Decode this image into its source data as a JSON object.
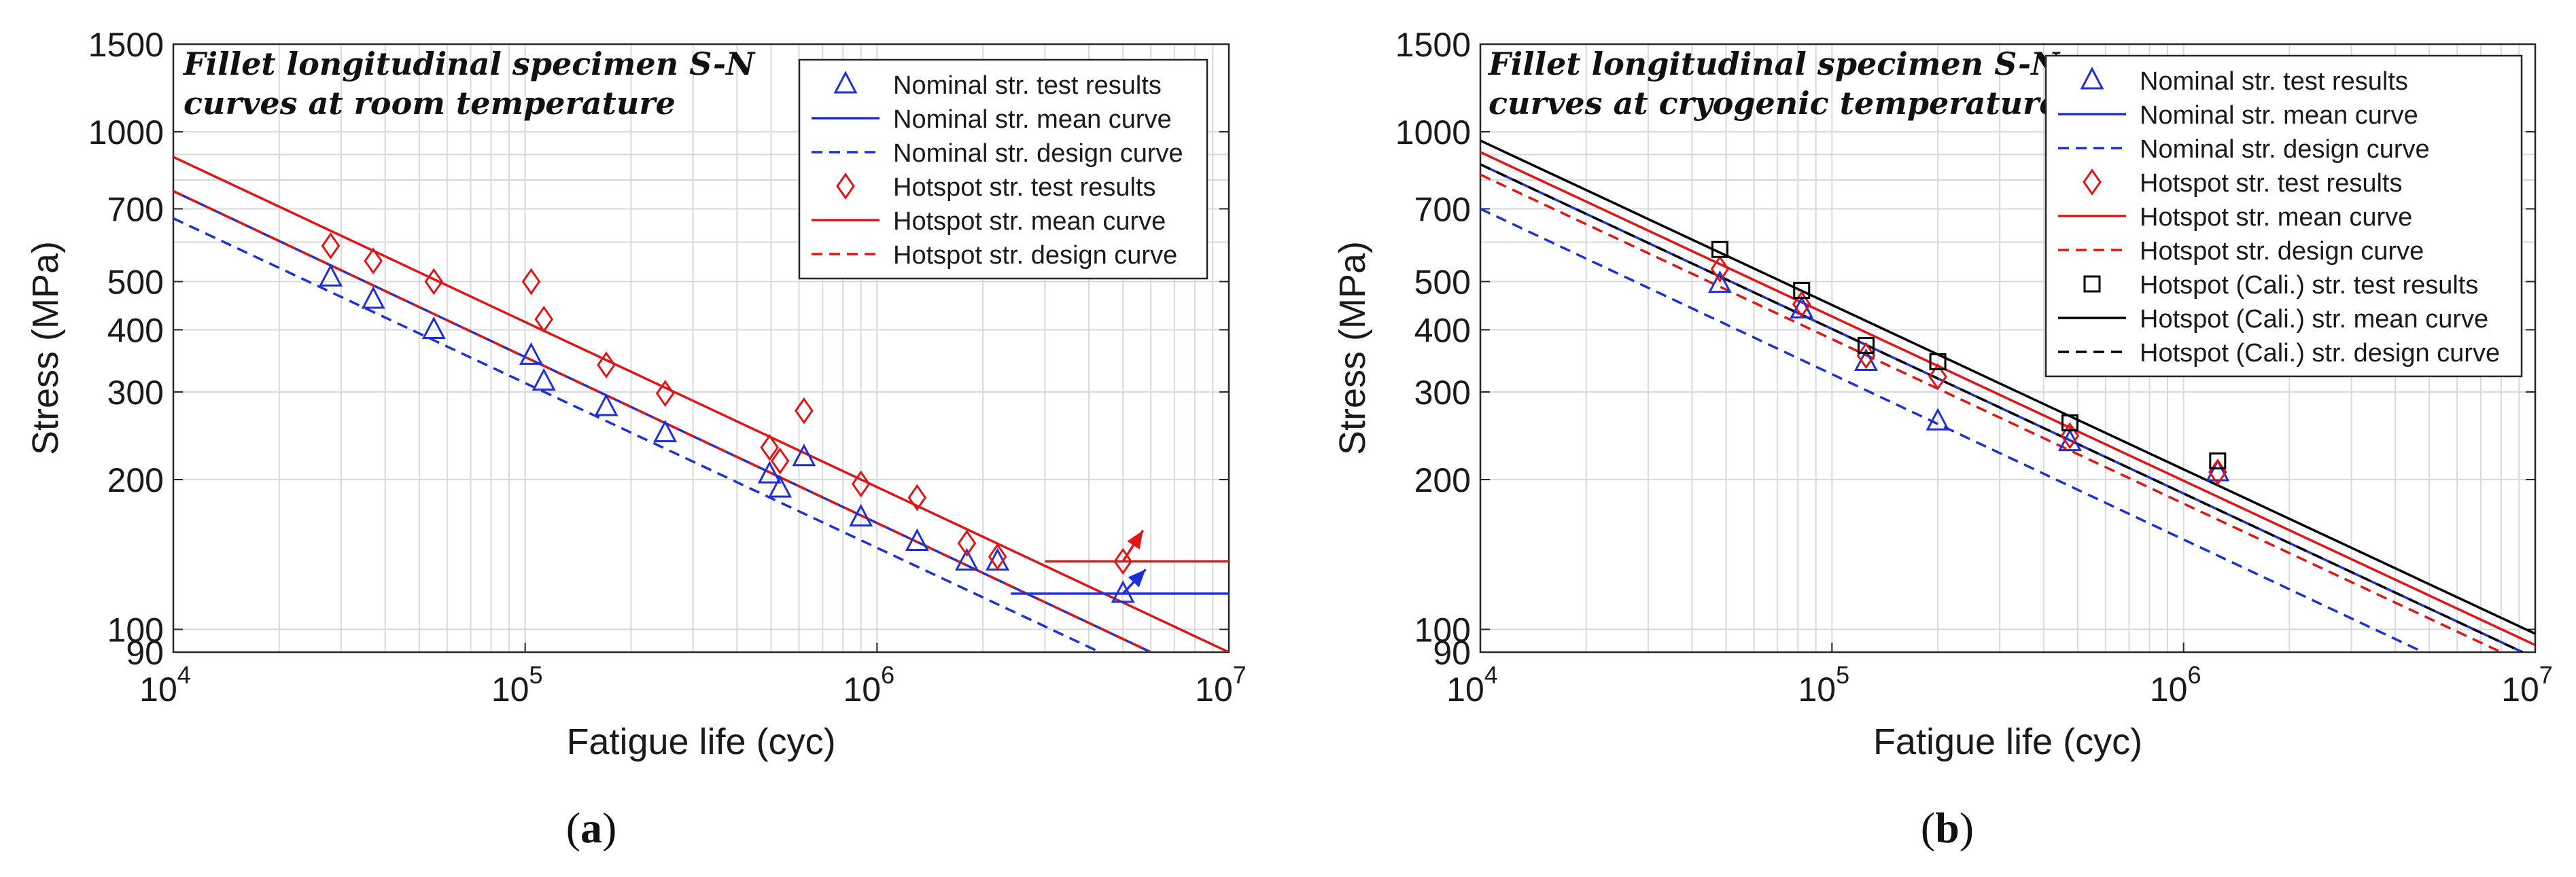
{
  "colors": {
    "nominal": "#1f2fd6",
    "hotspot": "#e01515",
    "cali": "#000000",
    "grid": "#d9d9d9",
    "axis": "#262626"
  },
  "chart_data": [
    {
      "type": "scatter",
      "panel_label": "(a)",
      "panel_letter": "a",
      "title": "Fillet longitudinal specimen S-N curves at room temperature",
      "title_lines": [
        "Fillet longitudinal specimen S-N",
        "curves at room temperature"
      ],
      "xlabel": "Fatigue life (cyc)",
      "ylabel": "Stress (MPa)",
      "xscale": "log",
      "yscale": "log",
      "xlim": [
        10000,
        10000000
      ],
      "ylim": [
        90,
        1500
      ],
      "yticks": [
        90,
        100,
        200,
        300,
        400,
        500,
        700,
        1000,
        1500
      ],
      "ytick_labels": [
        "90",
        "100",
        "200",
        "300",
        "400",
        "500",
        "700",
        "1000",
        "1500"
      ],
      "xticks": [
        {
          "value": 10000,
          "base": "10",
          "exp": "4"
        },
        {
          "value": 100000,
          "base": "10",
          "exp": "5"
        },
        {
          "value": 1000000,
          "base": "10",
          "exp": "6"
        },
        {
          "value": 10000000,
          "base": "10",
          "exp": "7"
        }
      ],
      "grid": true,
      "legend_position": "top-right",
      "series": [
        {
          "name": "Nominal str. test results",
          "kind": "points",
          "marker": "triangle",
          "color": "#1f2fd6",
          "points": [
            [
              28000,
              510
            ],
            [
              37000,
              460
            ],
            [
              55000,
              400
            ],
            [
              104000,
              355
            ],
            [
              113000,
              315
            ],
            [
              170000,
              280
            ],
            [
              250000,
              248
            ],
            [
              495000,
              205
            ],
            [
              530000,
              192
            ],
            [
              620000,
              222
            ],
            [
              900000,
              168
            ],
            [
              1300000,
              150
            ],
            [
              1800000,
              137
            ],
            [
              2200000,
              137
            ],
            [
              5000000,
              118
            ]
          ]
        },
        {
          "name": "Nominal str. mean curve",
          "kind": "line",
          "style": "solid",
          "color": "#1f2fd6",
          "points": [
            [
              10000,
              760
            ],
            [
              6000000,
              90
            ]
          ]
        },
        {
          "name": "Nominal str. design curve",
          "kind": "line",
          "style": "dashed",
          "color": "#1f2fd6",
          "points": [
            [
              10000,
              670
            ],
            [
              4300000,
              90
            ]
          ]
        },
        {
          "name": "Hotspot str. test results",
          "kind": "points",
          "marker": "diamond",
          "color": "#e01515",
          "points": [
            [
              28000,
              590
            ],
            [
              37000,
              550
            ],
            [
              55000,
              500
            ],
            [
              104000,
              500
            ],
            [
              113000,
              420
            ],
            [
              170000,
              340
            ],
            [
              250000,
              298
            ],
            [
              495000,
              232
            ],
            [
              530000,
              218
            ],
            [
              620000,
              275
            ],
            [
              900000,
              196
            ],
            [
              1300000,
              184
            ],
            [
              1800000,
              149
            ],
            [
              2200000,
              140
            ],
            [
              5000000,
              137
            ]
          ]
        },
        {
          "name": "Hotspot str. mean curve",
          "kind": "line",
          "style": "solid",
          "color": "#e01515",
          "points": [
            [
              10000,
              890
            ],
            [
              10000000,
              90
            ]
          ]
        },
        {
          "name": "Hotspot str. design curve",
          "kind": "line",
          "style": "dashed",
          "color": "#e01515",
          "points": [
            [
              10000,
              760
            ],
            [
              6000000,
              90
            ]
          ]
        }
      ],
      "runout": [
        {
          "name": "Nominal runout level",
          "color": "#1f2fd6",
          "level": 118,
          "x_start": 2400000,
          "arrow_from": [
            5000000,
            118
          ],
          "arrow_to": [
            5800000,
            132
          ]
        },
        {
          "name": "Hotspot runout level",
          "color": "#e01515",
          "level": 137,
          "x_start": 3000000,
          "arrow_from": [
            5000000,
            137
          ],
          "arrow_to": [
            5700000,
            158
          ]
        }
      ]
    },
    {
      "type": "scatter",
      "panel_label": "(b)",
      "panel_letter": "b",
      "title": "Fillet longitudinal specimen S-N curves at cryogenic temperature",
      "title_lines": [
        "Fillet longitudinal specimen S-N",
        "curves at cryogenic temperature"
      ],
      "xlabel": "Fatigue life (cyc)",
      "ylabel": "Stress (MPa)",
      "xscale": "log",
      "yscale": "log",
      "xlim": [
        10000,
        10000000
      ],
      "ylim": [
        90,
        1500
      ],
      "yticks": [
        90,
        100,
        200,
        300,
        400,
        500,
        700,
        1000,
        1500
      ],
      "ytick_labels": [
        "90",
        "100",
        "200",
        "300",
        "400",
        "500",
        "700",
        "1000",
        "1500"
      ],
      "xticks": [
        {
          "value": 10000,
          "base": "10",
          "exp": "4"
        },
        {
          "value": 100000,
          "base": "10",
          "exp": "5"
        },
        {
          "value": 1000000,
          "base": "10",
          "exp": "6"
        },
        {
          "value": 10000000,
          "base": "10",
          "exp": "7"
        }
      ],
      "grid": true,
      "legend_position": "top-right",
      "series": [
        {
          "name": "Nominal str. test results",
          "kind": "points",
          "marker": "triangle",
          "color": "#1f2fd6",
          "points": [
            [
              48000,
              495
            ],
            [
              82000,
              440
            ],
            [
              125000,
              345
            ],
            [
              200000,
              262
            ],
            [
              475000,
              238
            ],
            [
              1250000,
              207
            ]
          ]
        },
        {
          "name": "Nominal str. mean curve",
          "kind": "line",
          "style": "solid",
          "color": "#1f2fd6",
          "points": [
            [
              10000,
              860
            ],
            [
              9200000,
              90
            ]
          ]
        },
        {
          "name": "Nominal str. design curve",
          "kind": "line",
          "style": "dashed",
          "color": "#1f2fd6",
          "points": [
            [
              10000,
              700
            ],
            [
              4800000,
              90
            ]
          ]
        },
        {
          "name": "Hotspot str. test results",
          "kind": "points",
          "marker": "diamond",
          "color": "#e01515",
          "points": [
            [
              48000,
              530
            ],
            [
              82000,
              450
            ],
            [
              125000,
              355
            ],
            [
              200000,
              322
            ],
            [
              475000,
              245
            ],
            [
              1250000,
              207
            ]
          ]
        },
        {
          "name": "Hotspot str. mean curve",
          "kind": "line",
          "style": "solid",
          "color": "#e01515",
          "points": [
            [
              10000,
              910
            ],
            [
              10000000,
              93
            ]
          ]
        },
        {
          "name": "Hotspot str. design curve",
          "kind": "line",
          "style": "dashed",
          "color": "#e01515",
          "points": [
            [
              10000,
              820
            ],
            [
              8000000,
              90
            ]
          ]
        },
        {
          "name": "Hotspot (Cali.) str. test results",
          "kind": "points",
          "marker": "square",
          "color": "#000000",
          "points": [
            [
              48000,
              580
            ],
            [
              82000,
              480
            ],
            [
              125000,
              372
            ],
            [
              200000,
              345
            ],
            [
              475000,
              260
            ],
            [
              1250000,
              218
            ]
          ]
        },
        {
          "name": "Hotspot (Cali.) str. mean curve",
          "kind": "line",
          "style": "solid",
          "color": "#000000",
          "points": [
            [
              10000,
              960
            ],
            [
              10000000,
              98
            ]
          ]
        },
        {
          "name": "Hotspot (Cali.) str. design curve",
          "kind": "line",
          "style": "dashed",
          "color": "#000000",
          "points": [
            [
              10000,
              860
            ],
            [
              9200000,
              90
            ]
          ]
        }
      ],
      "runout": []
    }
  ]
}
